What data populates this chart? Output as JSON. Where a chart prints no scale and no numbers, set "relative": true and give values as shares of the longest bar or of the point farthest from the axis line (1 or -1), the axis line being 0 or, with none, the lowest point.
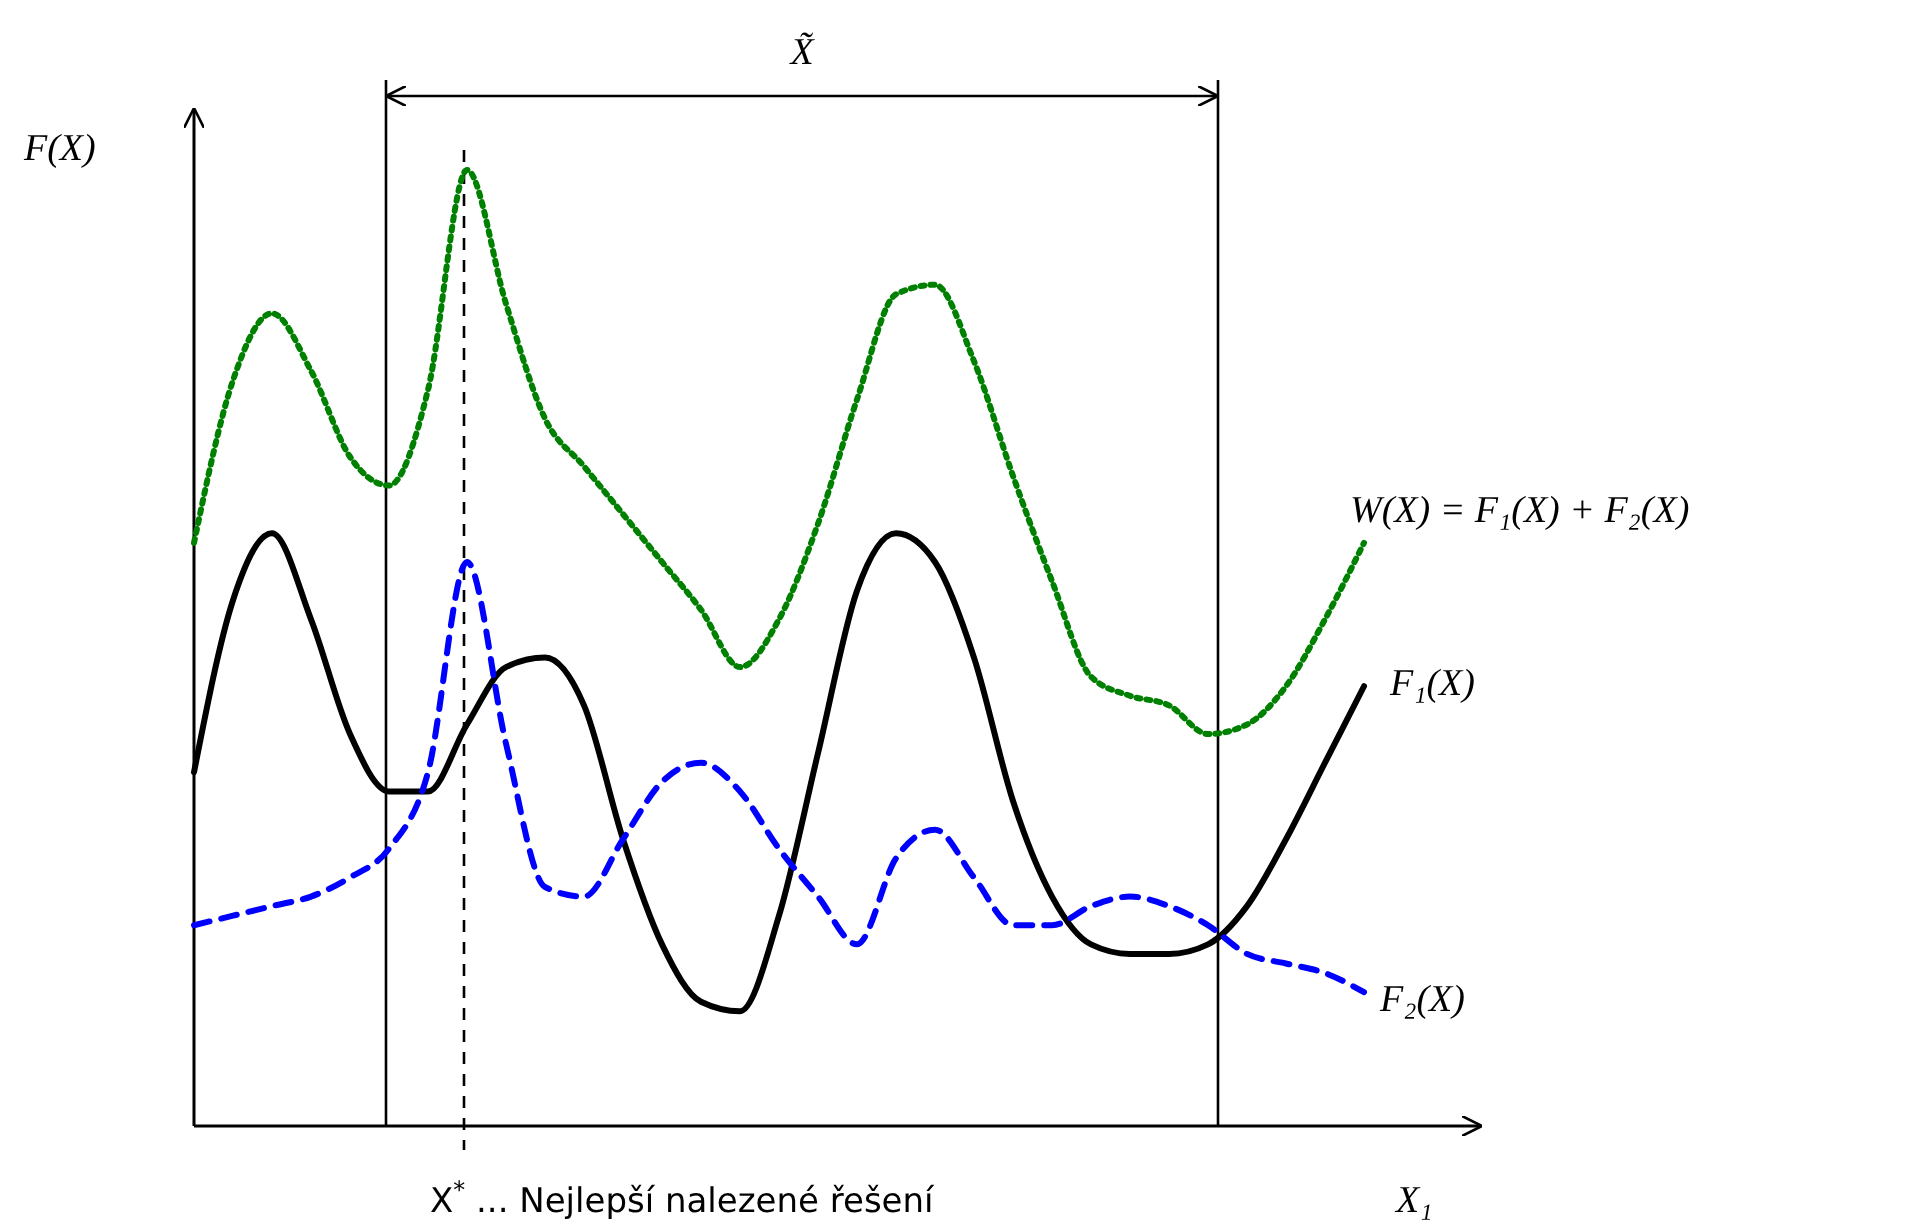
{
  "chart_data": {
    "type": "line",
    "relative": true,
    "xlabel": "X₁",
    "ylabel": "F(X)",
    "categories": [
      null,
      null,
      null,
      null,
      null,
      null,
      null,
      null,
      null,
      null,
      null,
      null,
      null,
      null,
      null,
      null,
      null,
      null,
      null,
      null,
      null,
      null,
      null,
      null,
      null,
      null,
      null,
      null,
      null,
      null,
      null
    ],
    "series": [
      {
        "name": "W(X) = F₁(X) + F₂(X)",
        "color": "#008000",
        "line_style": "dotted",
        "values": [
          0.61,
          0.78,
          0.85,
          0.79,
          0.7,
          0.67,
          0.77,
          1,
          0.86,
          0.74,
          0.69,
          0.64,
          0.59,
          0.54,
          0.48,
          0.53,
          0.63,
          0.76,
          0.87,
          0.88,
          0.8,
          0.68,
          0.57,
          0.47,
          0.45,
          0.44,
          0.41,
          0.42,
          0.46,
          0.53,
          0.61
        ]
      },
      {
        "name": "F₁(X)",
        "color": "#000000",
        "line_style": "solid",
        "values": [
          0.37,
          0.55,
          0.62,
          0.53,
          0.41,
          0.35,
          0.35,
          0.42,
          0.48,
          0.49,
          0.44,
          0.3,
          0.19,
          0.13,
          0.12,
          0.22,
          0.39,
          0.56,
          0.62,
          0.59,
          0.49,
          0.34,
          0.24,
          0.19,
          0.18,
          0.18,
          0.19,
          0.23,
          0.3,
          0.38,
          0.46
        ]
      },
      {
        "name": "F₂(X)",
        "color": "#0000ff",
        "line_style": "dashed",
        "values": [
          0.21,
          0.22,
          0.23,
          0.24,
          0.26,
          0.29,
          0.37,
          0.59,
          0.4,
          0.25,
          0.24,
          0.3,
          0.36,
          0.38,
          0.35,
          0.29,
          0.24,
          0.19,
          0.28,
          0.31,
          0.26,
          0.21,
          0.21,
          0.23,
          0.24,
          0.23,
          0.21,
          0.18,
          0.17,
          0.16,
          0.14
        ]
      }
    ],
    "annotations": [
      "X̃",
      "X$^{*}$ ... Nejlepší nalezené řešení"
    ]
  }
}
